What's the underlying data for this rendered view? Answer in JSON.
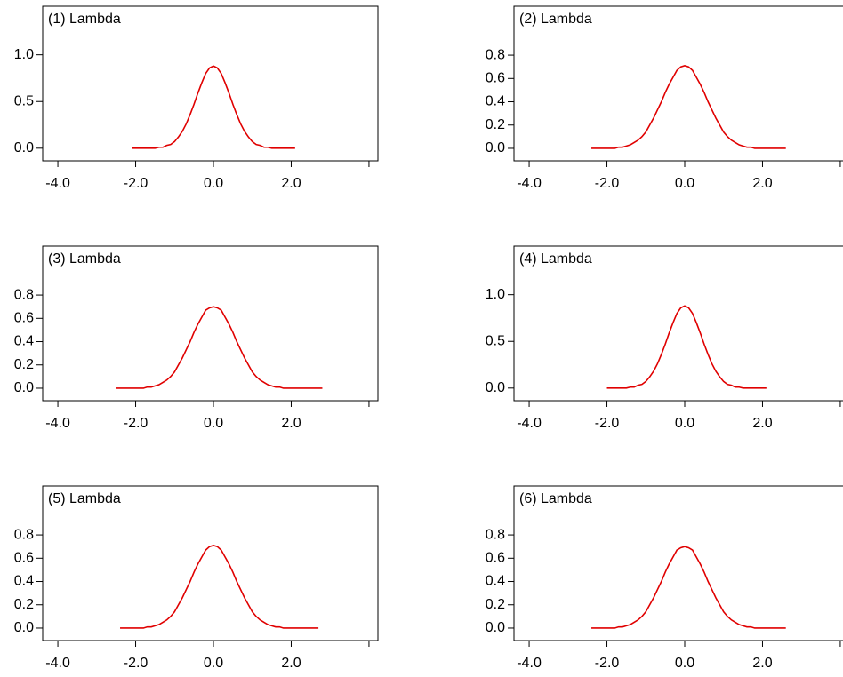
{
  "chart_data": [
    {
      "type": "line",
      "title": "(1) Lambda",
      "xlim": [
        -4.39,
        4.23
      ],
      "ylim": [
        -0.135,
        1.52
      ],
      "xticks": [
        {
          "value": -4,
          "label": "-4.0"
        },
        {
          "value": -2,
          "label": "-2.0"
        },
        {
          "value": 0,
          "label": "0.0"
        },
        {
          "value": 2,
          "label": "2.0"
        },
        {
          "value": 4,
          "label": null
        }
      ],
      "yticks": [
        {
          "value": 0,
          "label": "0.0"
        },
        {
          "value": 0.5,
          "label": "0.5"
        },
        {
          "value": 1,
          "label": "1.0"
        }
      ],
      "x": [
        -2.1,
        -2.0,
        -1.9,
        -1.8,
        -1.7,
        -1.6,
        -1.5,
        -1.4,
        -1.3,
        -1.2,
        -1.1,
        -1.0,
        -0.9,
        -0.8,
        -0.7,
        -0.6,
        -0.5,
        -0.4,
        -0.3,
        -0.2,
        -0.1,
        0,
        0.1,
        0.2,
        0.3,
        0.4,
        0.5,
        0.6,
        0.7,
        0.8,
        0.9,
        1.0,
        1.1,
        1.2,
        1.3,
        1.4,
        1.5,
        1.6,
        1.7,
        1.8,
        1.9,
        2.0,
        2.1
      ],
      "series": [
        {
          "color": "#e00000",
          "values": [
            0,
            0,
            0,
            0,
            0,
            0,
            0,
            0.01,
            0.01,
            0.03,
            0.04,
            0.07,
            0.12,
            0.18,
            0.26,
            0.36,
            0.47,
            0.59,
            0.7,
            0.8,
            0.86,
            0.88,
            0.86,
            0.8,
            0.7,
            0.59,
            0.47,
            0.36,
            0.26,
            0.18,
            0.12,
            0.07,
            0.04,
            0.03,
            0.01,
            0.01,
            0,
            0,
            0,
            0,
            0,
            0,
            0
          ]
        }
      ]
    },
    {
      "type": "line",
      "title": "(2) Lambda",
      "xlim": [
        -4.39,
        4.23
      ],
      "ylim": [
        -0.107,
        1.22
      ],
      "xticks": [
        {
          "value": -4,
          "label": "-4.0"
        },
        {
          "value": -2,
          "label": "-2.0"
        },
        {
          "value": 0,
          "label": "0.0"
        },
        {
          "value": 2,
          "label": "2.0"
        },
        {
          "value": 4,
          "label": null
        }
      ],
      "yticks": [
        {
          "value": 0,
          "label": "0.0"
        },
        {
          "value": 0.2,
          "label": "0.2"
        },
        {
          "value": 0.4,
          "label": "0.4"
        },
        {
          "value": 0.6,
          "label": "0.6"
        },
        {
          "value": 0.8,
          "label": "0.8"
        }
      ],
      "x": [
        -2.4,
        -2.3,
        -2.2,
        -2.1,
        -2.0,
        -1.9,
        -1.8,
        -1.7,
        -1.6,
        -1.5,
        -1.4,
        -1.3,
        -1.2,
        -1.1,
        -1.0,
        -0.9,
        -0.8,
        -0.7,
        -0.6,
        -0.5,
        -0.4,
        -0.3,
        -0.2,
        -0.1,
        0,
        0.1,
        0.2,
        0.3,
        0.4,
        0.5,
        0.6,
        0.7,
        0.8,
        0.9,
        1.0,
        1.1,
        1.2,
        1.3,
        1.4,
        1.5,
        1.6,
        1.7,
        1.8,
        1.9,
        2.0,
        2.1,
        2.2,
        2.3,
        2.4,
        2.5,
        2.6
      ],
      "series": [
        {
          "color": "#e00000",
          "values": [
            0,
            0,
            0,
            0,
            0,
            0,
            0,
            0.01,
            0.01,
            0.02,
            0.03,
            0.05,
            0.07,
            0.1,
            0.14,
            0.2,
            0.26,
            0.33,
            0.4,
            0.48,
            0.55,
            0.61,
            0.67,
            0.7,
            0.71,
            0.7,
            0.67,
            0.61,
            0.55,
            0.48,
            0.4,
            0.33,
            0.26,
            0.2,
            0.14,
            0.1,
            0.07,
            0.05,
            0.03,
            0.02,
            0.01,
            0.01,
            0,
            0,
            0,
            0,
            0,
            0,
            0,
            0,
            0
          ]
        }
      ]
    },
    {
      "type": "line",
      "title": "(3) Lambda",
      "xlim": [
        -4.39,
        4.23
      ],
      "ylim": [
        -0.107,
        1.22
      ],
      "xticks": [
        {
          "value": -4,
          "label": "-4.0"
        },
        {
          "value": -2,
          "label": "-2.0"
        },
        {
          "value": 0,
          "label": "0.0"
        },
        {
          "value": 2,
          "label": "2.0"
        },
        {
          "value": 4,
          "label": null
        }
      ],
      "yticks": [
        {
          "value": 0,
          "label": "0.0"
        },
        {
          "value": 0.2,
          "label": "0.2"
        },
        {
          "value": 0.4,
          "label": "0.4"
        },
        {
          "value": 0.6,
          "label": "0.6"
        },
        {
          "value": 0.8,
          "label": "0.8"
        }
      ],
      "x": [
        -2.5,
        -2.4,
        -2.3,
        -2.2,
        -2.1,
        -2.0,
        -1.9,
        -1.8,
        -1.7,
        -1.6,
        -1.5,
        -1.4,
        -1.3,
        -1.2,
        -1.1,
        -1.0,
        -0.9,
        -0.8,
        -0.7,
        -0.6,
        -0.5,
        -0.4,
        -0.3,
        -0.2,
        -0.1,
        0,
        0.1,
        0.2,
        0.3,
        0.4,
        0.5,
        0.6,
        0.7,
        0.8,
        0.9,
        1.0,
        1.1,
        1.2,
        1.3,
        1.4,
        1.5,
        1.6,
        1.7,
        1.8,
        1.9,
        2.0,
        2.1,
        2.2,
        2.3,
        2.4,
        2.5,
        2.6,
        2.7,
        2.8
      ],
      "series": [
        {
          "color": "#e00000",
          "values": [
            0,
            0,
            0,
            0,
            0,
            0,
            0,
            0,
            0.01,
            0.01,
            0.02,
            0.03,
            0.05,
            0.07,
            0.1,
            0.14,
            0.2,
            0.26,
            0.33,
            0.4,
            0.48,
            0.55,
            0.61,
            0.67,
            0.69,
            0.7,
            0.69,
            0.67,
            0.61,
            0.55,
            0.48,
            0.4,
            0.33,
            0.26,
            0.2,
            0.14,
            0.1,
            0.07,
            0.05,
            0.03,
            0.02,
            0.01,
            0.01,
            0,
            0,
            0,
            0,
            0,
            0,
            0,
            0,
            0,
            0,
            0
          ]
        }
      ]
    },
    {
      "type": "line",
      "title": "(4) Lambda",
      "xlim": [
        -4.39,
        4.23
      ],
      "ylim": [
        -0.135,
        1.52
      ],
      "xticks": [
        {
          "value": -4,
          "label": "-4.0"
        },
        {
          "value": -2,
          "label": "-2.0"
        },
        {
          "value": 0,
          "label": "0.0"
        },
        {
          "value": 2,
          "label": "2.0"
        },
        {
          "value": 4,
          "label": null
        }
      ],
      "yticks": [
        {
          "value": 0,
          "label": "0.0"
        },
        {
          "value": 0.5,
          "label": "0.5"
        },
        {
          "value": 1,
          "label": "1.0"
        }
      ],
      "x": [
        -2.0,
        -1.9,
        -1.8,
        -1.7,
        -1.6,
        -1.5,
        -1.4,
        -1.3,
        -1.2,
        -1.1,
        -1.0,
        -0.9,
        -0.8,
        -0.7,
        -0.6,
        -0.5,
        -0.4,
        -0.3,
        -0.2,
        -0.1,
        0,
        0.1,
        0.2,
        0.3,
        0.4,
        0.5,
        0.6,
        0.7,
        0.8,
        0.9,
        1.0,
        1.1,
        1.2,
        1.3,
        1.4,
        1.5,
        1.6,
        1.7,
        1.8,
        1.9,
        2.0,
        2.1
      ],
      "series": [
        {
          "color": "#e00000",
          "values": [
            0,
            0,
            0,
            0,
            0,
            0,
            0.01,
            0.01,
            0.03,
            0.04,
            0.07,
            0.12,
            0.18,
            0.26,
            0.36,
            0.47,
            0.59,
            0.7,
            0.8,
            0.86,
            0.88,
            0.86,
            0.8,
            0.7,
            0.59,
            0.47,
            0.36,
            0.26,
            0.18,
            0.12,
            0.07,
            0.04,
            0.03,
            0.01,
            0.01,
            0,
            0,
            0,
            0,
            0,
            0,
            0
          ]
        }
      ]
    },
    {
      "type": "line",
      "title": "(5) Lambda",
      "xlim": [
        -4.39,
        4.23
      ],
      "ylim": [
        -0.107,
        1.22
      ],
      "xticks": [
        {
          "value": -4,
          "label": "-4.0"
        },
        {
          "value": -2,
          "label": "-2.0"
        },
        {
          "value": 0,
          "label": "0.0"
        },
        {
          "value": 2,
          "label": "2.0"
        },
        {
          "value": 4,
          "label": null
        }
      ],
      "yticks": [
        {
          "value": 0,
          "label": "0.0"
        },
        {
          "value": 0.2,
          "label": "0.2"
        },
        {
          "value": 0.4,
          "label": "0.4"
        },
        {
          "value": 0.6,
          "label": "0.6"
        },
        {
          "value": 0.8,
          "label": "0.8"
        }
      ],
      "x": [
        -2.4,
        -2.3,
        -2.2,
        -2.1,
        -2.0,
        -1.9,
        -1.8,
        -1.7,
        -1.6,
        -1.5,
        -1.4,
        -1.3,
        -1.2,
        -1.1,
        -1.0,
        -0.9,
        -0.8,
        -0.7,
        -0.6,
        -0.5,
        -0.4,
        -0.3,
        -0.2,
        -0.1,
        0,
        0.1,
        0.2,
        0.3,
        0.4,
        0.5,
        0.6,
        0.7,
        0.8,
        0.9,
        1.0,
        1.1,
        1.2,
        1.3,
        1.4,
        1.5,
        1.6,
        1.7,
        1.8,
        1.9,
        2.0,
        2.1,
        2.2,
        2.3,
        2.4,
        2.5,
        2.6,
        2.7
      ],
      "series": [
        {
          "color": "#e00000",
          "values": [
            0,
            0,
            0,
            0,
            0,
            0,
            0,
            0.01,
            0.01,
            0.02,
            0.03,
            0.05,
            0.07,
            0.1,
            0.14,
            0.2,
            0.26,
            0.33,
            0.4,
            0.48,
            0.55,
            0.61,
            0.67,
            0.7,
            0.71,
            0.7,
            0.67,
            0.61,
            0.55,
            0.48,
            0.4,
            0.33,
            0.26,
            0.2,
            0.14,
            0.1,
            0.07,
            0.05,
            0.03,
            0.02,
            0.01,
            0.01,
            0,
            0,
            0,
            0,
            0,
            0,
            0,
            0,
            0,
            0
          ]
        }
      ]
    },
    {
      "type": "line",
      "title": "(6) Lambda",
      "xlim": [
        -4.39,
        4.23
      ],
      "ylim": [
        -0.107,
        1.22
      ],
      "xticks": [
        {
          "value": -4,
          "label": "-4.0"
        },
        {
          "value": -2,
          "label": "-2.0"
        },
        {
          "value": 0,
          "label": "0.0"
        },
        {
          "value": 2,
          "label": "2.0"
        },
        {
          "value": 4,
          "label": null
        }
      ],
      "yticks": [
        {
          "value": 0,
          "label": "0.0"
        },
        {
          "value": 0.2,
          "label": "0.2"
        },
        {
          "value": 0.4,
          "label": "0.4"
        },
        {
          "value": 0.6,
          "label": "0.6"
        },
        {
          "value": 0.8,
          "label": "0.8"
        }
      ],
      "x": [
        -2.4,
        -2.3,
        -2.2,
        -2.1,
        -2.0,
        -1.9,
        -1.8,
        -1.7,
        -1.6,
        -1.5,
        -1.4,
        -1.3,
        -1.2,
        -1.1,
        -1.0,
        -0.9,
        -0.8,
        -0.7,
        -0.6,
        -0.5,
        -0.4,
        -0.3,
        -0.2,
        -0.1,
        0,
        0.1,
        0.2,
        0.3,
        0.4,
        0.5,
        0.6,
        0.7,
        0.8,
        0.9,
        1.0,
        1.1,
        1.2,
        1.3,
        1.4,
        1.5,
        1.6,
        1.7,
        1.8,
        1.9,
        2.0,
        2.1,
        2.2,
        2.3,
        2.4,
        2.5,
        2.6
      ],
      "series": [
        {
          "color": "#e00000",
          "values": [
            0,
            0,
            0,
            0,
            0,
            0,
            0,
            0.01,
            0.01,
            0.02,
            0.03,
            0.05,
            0.07,
            0.1,
            0.14,
            0.2,
            0.26,
            0.33,
            0.4,
            0.48,
            0.55,
            0.61,
            0.67,
            0.69,
            0.7,
            0.69,
            0.67,
            0.61,
            0.55,
            0.48,
            0.4,
            0.33,
            0.26,
            0.2,
            0.14,
            0.1,
            0.07,
            0.05,
            0.03,
            0.02,
            0.01,
            0.01,
            0,
            0,
            0,
            0,
            0,
            0,
            0,
            0,
            0
          ]
        }
      ]
    }
  ]
}
